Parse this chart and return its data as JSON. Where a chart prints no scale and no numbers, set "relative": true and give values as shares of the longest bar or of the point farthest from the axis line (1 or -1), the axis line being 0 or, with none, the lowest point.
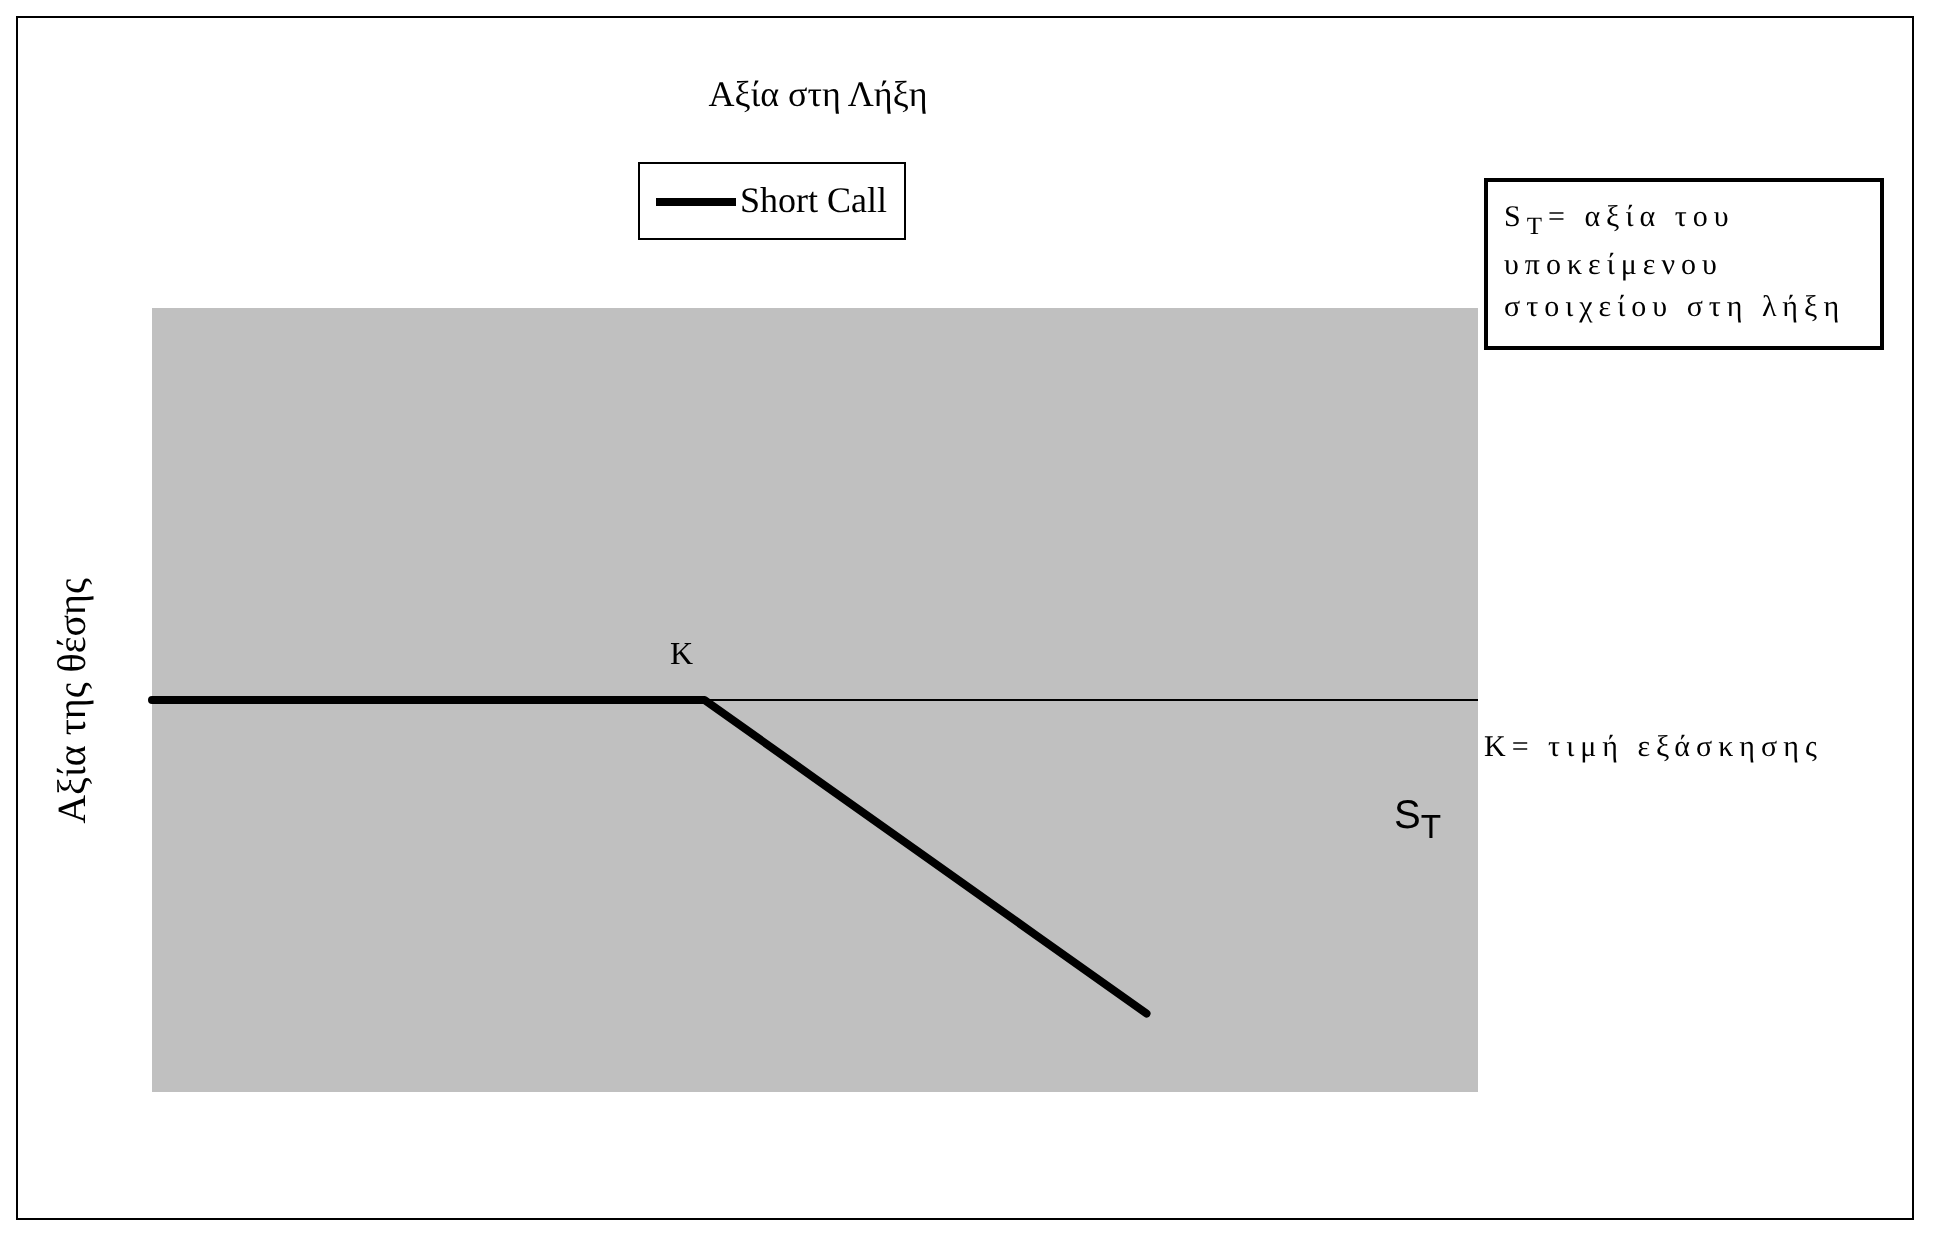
{
  "chart_data": {
    "type": "line",
    "title": "Αξία στη Λήξη",
    "ylabel": "Αξία της θέσης",
    "xlabel": "S$_{T}$",
    "relative": true,
    "legend": "top",
    "categories": [
      null,
      null,
      null,
      null,
      null,
      null,
      null,
      null,
      null,
      null,
      null,
      null,
      null
    ],
    "series": [
      {
        "name": "Short Call",
        "color": "#000000",
        "values": [
          0,
          0,
          0,
          0,
          0,
          0,
          -0.25,
          -0.5,
          -0.75,
          -1,
          null,
          null,
          null
        ]
      }
    ],
    "annotations": [
      "K",
      "S$_{T}$= αξία του υποκείμενου στοιχείου στη λήξη",
      "K= τιμή εξάσκησης"
    ]
  }
}
